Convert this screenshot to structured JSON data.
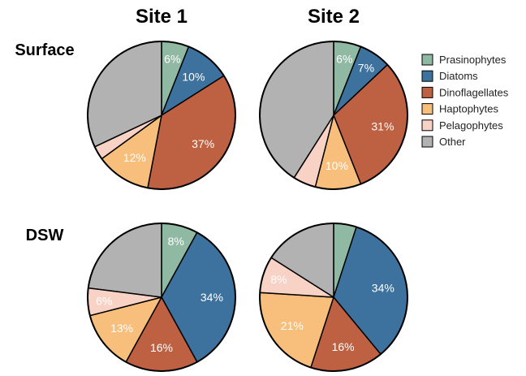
{
  "column_titles": [
    "Site 1",
    "Site 2"
  ],
  "row_titles": [
    "Surface",
    "DSW"
  ],
  "legend": [
    {
      "name": "Prasinophytes",
      "color": "#8fb9a3"
    },
    {
      "name": "Diatoms",
      "color": "#3e729e"
    },
    {
      "name": "Dinoflagellates",
      "color": "#be6042"
    },
    {
      "name": "Haptophytes",
      "color": "#f7be7c"
    },
    {
      "name": "Pelagophytes",
      "color": "#f9d2c6"
    },
    {
      "name": "Other",
      "color": "#b2b2b2"
    }
  ],
  "chart_data": [
    {
      "type": "pie",
      "column": "Site 1",
      "row": "Surface",
      "categories": [
        "Prasinophytes",
        "Diatoms",
        "Dinoflagellates",
        "Haptophytes",
        "Pelagophytes",
        "Other"
      ],
      "values": [
        6,
        10,
        37,
        12,
        3,
        32
      ],
      "labels": [
        "6%",
        "10%",
        "37%",
        "12%",
        "",
        ""
      ]
    },
    {
      "type": "pie",
      "column": "Site 2",
      "row": "Surface",
      "categories": [
        "Prasinophytes",
        "Diatoms",
        "Dinoflagellates",
        "Haptophytes",
        "Pelagophytes",
        "Other"
      ],
      "values": [
        6,
        7,
        31,
        10,
        5,
        41
      ],
      "labels": [
        "6%",
        "7%",
        "31%",
        "10%",
        "",
        ""
      ]
    },
    {
      "type": "pie",
      "column": "Site 1",
      "row": "DSW",
      "categories": [
        "Prasinophytes",
        "Diatoms",
        "Dinoflagellates",
        "Haptophytes",
        "Pelagophytes",
        "Other"
      ],
      "values": [
        8,
        34,
        16,
        13,
        6,
        23
      ],
      "labels": [
        "8%",
        "34%",
        "16%",
        "13%",
        "6%",
        ""
      ]
    },
    {
      "type": "pie",
      "column": "Site 2",
      "row": "DSW",
      "categories": [
        "Prasinophytes",
        "Diatoms",
        "Dinoflagellates",
        "Haptophytes",
        "Pelagophytes",
        "Other"
      ],
      "values": [
        5,
        34,
        16,
        21,
        8,
        16
      ],
      "labels": [
        "",
        "34%",
        "16%",
        "21%",
        "8%",
        ""
      ]
    }
  ]
}
